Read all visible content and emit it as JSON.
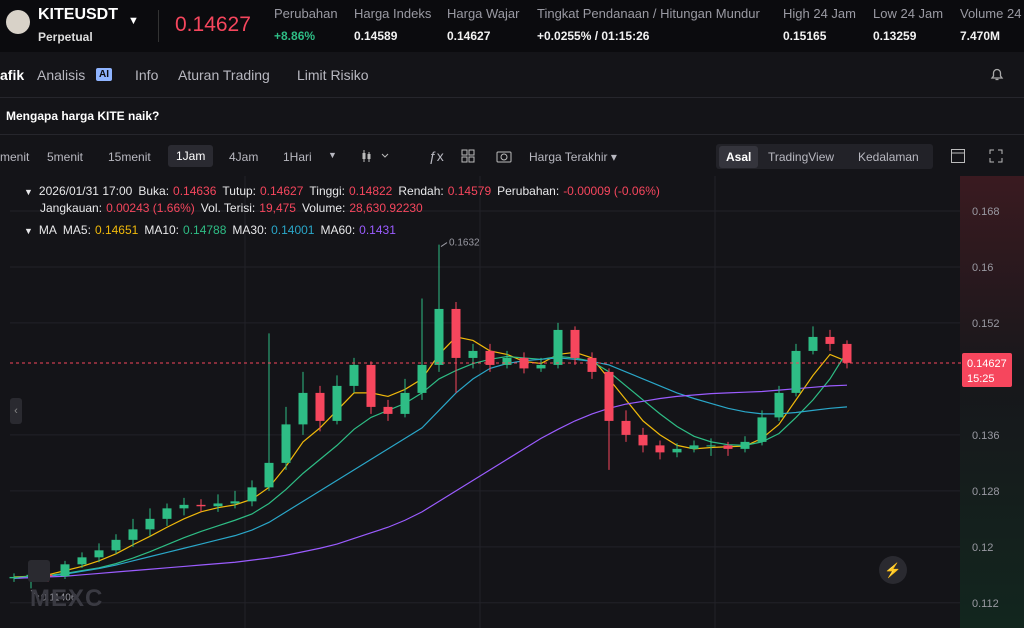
{
  "header": {
    "symbol": "KITEUSDT",
    "contract": "Perpetual",
    "price": "0.14627",
    "stats": [
      {
        "label": "Perubahan",
        "value": "+8.86%"
      },
      {
        "label": "Harga Indeks",
        "value": "0.14589"
      },
      {
        "label": "Harga Wajar",
        "value": "0.14627"
      },
      {
        "label": "Tingkat Pendanaan / Hitungan Mundur",
        "value": "+0.0255% / 01:15:26"
      },
      {
        "label": "High 24 Jam",
        "value": "0.15165"
      },
      {
        "label": "Low 24 Jam",
        "value": "0.13259"
      },
      {
        "label": "Volume 24",
        "value": "7.470M"
      }
    ]
  },
  "tabs": [
    "afik",
    "Analisis",
    "Info",
    "Aturan Trading",
    "Limit Risiko"
  ],
  "ai_badge": "AI",
  "banner": "Mengapa harga KITE naik?",
  "toolbar": {
    "intervals": [
      "menit",
      "5menit",
      "15menit",
      "1Jam",
      "4Jam",
      "1Hari"
    ],
    "price_type": "Harga Terakhir",
    "views": [
      "Asal",
      "TradingView",
      "Kedalaman"
    ]
  },
  "info": {
    "time": "2026/01/31 17:00",
    "line1": [
      {
        "label": "Buka:",
        "value": "0.14636"
      },
      {
        "label": "Tutup:",
        "value": "0.14627"
      },
      {
        "label": "Tinggi:",
        "value": "0.14822"
      },
      {
        "label": "Rendah:",
        "value": "0.14579"
      },
      {
        "label": "Perubahan:",
        "value": "-0.00009 (-0.06%)"
      }
    ],
    "line2": [
      {
        "label": "Jangkauan:",
        "value": "0.00243 (1.66%)"
      },
      {
        "label": "Vol. Terisi:",
        "value": "19,475"
      },
      {
        "label": "Volume:",
        "value": "28,630.92230"
      }
    ],
    "ma_title": "MA",
    "ma": [
      {
        "label": "MA5:",
        "value": "0.14651"
      },
      {
        "label": "MA10:",
        "value": "0.14788"
      },
      {
        "label": "MA30:",
        "value": "0.14001"
      },
      {
        "label": "MA60:",
        "value": "0.1431"
      }
    ]
  },
  "watermark": "MEXC",
  "chart_data": {
    "type": "candlestick",
    "up_color": "#2ebd85",
    "down_color": "#f6465d",
    "ylim": [
      0.1084,
      0.173
    ],
    "yticks": [
      0.112,
      0.12,
      0.128,
      0.136,
      0.152,
      0.16,
      0.168
    ],
    "grid": true,
    "last_price": 0.14627,
    "last_time": "15:25",
    "candles": [
      {
        "o": 0.1155,
        "h": 0.1162,
        "l": 0.115,
        "c": 0.1157
      },
      {
        "o": 0.1157,
        "h": 0.1166,
        "l": 0.11406,
        "c": 0.116
      },
      {
        "o": 0.116,
        "h": 0.1164,
        "l": 0.115,
        "c": 0.1158
      },
      {
        "o": 0.1158,
        "h": 0.118,
        "l": 0.1154,
        "c": 0.1175
      },
      {
        "o": 0.1175,
        "h": 0.1192,
        "l": 0.117,
        "c": 0.1185
      },
      {
        "o": 0.1185,
        "h": 0.1205,
        "l": 0.1178,
        "c": 0.1195
      },
      {
        "o": 0.1195,
        "h": 0.1218,
        "l": 0.119,
        "c": 0.121
      },
      {
        "o": 0.121,
        "h": 0.124,
        "l": 0.12,
        "c": 0.1225
      },
      {
        "o": 0.1225,
        "h": 0.1255,
        "l": 0.1215,
        "c": 0.124
      },
      {
        "o": 0.124,
        "h": 0.1262,
        "l": 0.123,
        "c": 0.1255
      },
      {
        "o": 0.1255,
        "h": 0.127,
        "l": 0.1245,
        "c": 0.126
      },
      {
        "o": 0.126,
        "h": 0.1268,
        "l": 0.125,
        "c": 0.1258
      },
      {
        "o": 0.1258,
        "h": 0.1275,
        "l": 0.125,
        "c": 0.1262
      },
      {
        "o": 0.1262,
        "h": 0.128,
        "l": 0.1255,
        "c": 0.1265
      },
      {
        "o": 0.1265,
        "h": 0.1295,
        "l": 0.1258,
        "c": 0.1285
      },
      {
        "o": 0.1285,
        "h": 0.1505,
        "l": 0.128,
        "c": 0.132
      },
      {
        "o": 0.132,
        "h": 0.14,
        "l": 0.131,
        "c": 0.1375
      },
      {
        "o": 0.1375,
        "h": 0.145,
        "l": 0.136,
        "c": 0.142
      },
      {
        "o": 0.142,
        "h": 0.143,
        "l": 0.1365,
        "c": 0.138
      },
      {
        "o": 0.138,
        "h": 0.1445,
        "l": 0.1375,
        "c": 0.143
      },
      {
        "o": 0.143,
        "h": 0.147,
        "l": 0.142,
        "c": 0.146
      },
      {
        "o": 0.146,
        "h": 0.1465,
        "l": 0.139,
        "c": 0.14
      },
      {
        "o": 0.14,
        "h": 0.141,
        "l": 0.138,
        "c": 0.139
      },
      {
        "o": 0.139,
        "h": 0.144,
        "l": 0.1385,
        "c": 0.142
      },
      {
        "o": 0.142,
        "h": 0.1555,
        "l": 0.141,
        "c": 0.146
      },
      {
        "o": 0.146,
        "h": 0.1632,
        "l": 0.145,
        "c": 0.154
      },
      {
        "o": 0.154,
        "h": 0.155,
        "l": 0.142,
        "c": 0.147
      },
      {
        "o": 0.147,
        "h": 0.149,
        "l": 0.1455,
        "c": 0.148
      },
      {
        "o": 0.148,
        "h": 0.149,
        "l": 0.145,
        "c": 0.146
      },
      {
        "o": 0.146,
        "h": 0.148,
        "l": 0.1455,
        "c": 0.147
      },
      {
        "o": 0.147,
        "h": 0.1478,
        "l": 0.1448,
        "c": 0.1455
      },
      {
        "o": 0.1455,
        "h": 0.147,
        "l": 0.145,
        "c": 0.146
      },
      {
        "o": 0.146,
        "h": 0.152,
        "l": 0.1455,
        "c": 0.151
      },
      {
        "o": 0.151,
        "h": 0.1515,
        "l": 0.146,
        "c": 0.147
      },
      {
        "o": 0.147,
        "h": 0.1478,
        "l": 0.144,
        "c": 0.145
      },
      {
        "o": 0.145,
        "h": 0.1455,
        "l": 0.131,
        "c": 0.138
      },
      {
        "o": 0.138,
        "h": 0.1395,
        "l": 0.135,
        "c": 0.136
      },
      {
        "o": 0.136,
        "h": 0.137,
        "l": 0.1335,
        "c": 0.1345
      },
      {
        "o": 0.1345,
        "h": 0.1352,
        "l": 0.1325,
        "c": 0.1335
      },
      {
        "o": 0.1335,
        "h": 0.1348,
        "l": 0.1328,
        "c": 0.134
      },
      {
        "o": 0.134,
        "h": 0.1352,
        "l": 0.1335,
        "c": 0.1345
      },
      {
        "o": 0.1345,
        "h": 0.1355,
        "l": 0.133,
        "c": 0.1345
      },
      {
        "o": 0.1345,
        "h": 0.135,
        "l": 0.133,
        "c": 0.134
      },
      {
        "o": 0.134,
        "h": 0.1358,
        "l": 0.1335,
        "c": 0.135
      },
      {
        "o": 0.135,
        "h": 0.1395,
        "l": 0.1345,
        "c": 0.1385
      },
      {
        "o": 0.1385,
        "h": 0.143,
        "l": 0.138,
        "c": 0.142
      },
      {
        "o": 0.142,
        "h": 0.149,
        "l": 0.1415,
        "c": 0.148
      },
      {
        "o": 0.148,
        "h": 0.1515,
        "l": 0.1475,
        "c": 0.15
      },
      {
        "o": 0.15,
        "h": 0.151,
        "l": 0.148,
        "c": 0.149
      },
      {
        "o": 0.149,
        "h": 0.1495,
        "l": 0.1455,
        "c": 0.1463
      }
    ],
    "series": [
      {
        "name": "MA5",
        "color": "#f0b90b",
        "values": [
          0.1157,
          0.1158,
          0.116,
          0.1166,
          0.1172,
          0.118,
          0.119,
          0.1203,
          0.1215,
          0.1228,
          0.124,
          0.125,
          0.1256,
          0.126,
          0.1268,
          0.1285,
          0.1315,
          0.135,
          0.137,
          0.1395,
          0.142,
          0.142,
          0.1415,
          0.1425,
          0.144,
          0.1475,
          0.15,
          0.1495,
          0.148,
          0.1475,
          0.1465,
          0.1462,
          0.1475,
          0.1478,
          0.147,
          0.144,
          0.141,
          0.138,
          0.136,
          0.1345,
          0.134,
          0.1342,
          0.1343,
          0.1344,
          0.1355,
          0.1375,
          0.141,
          0.1445,
          0.1475,
          0.1465
        ]
      },
      {
        "name": "MA10",
        "color": "#2ebd85",
        "values": [
          0.1156,
          0.1158,
          0.1159,
          0.1162,
          0.1166,
          0.117,
          0.1176,
          0.1184,
          0.1193,
          0.1203,
          0.1213,
          0.1222,
          0.123,
          0.1238,
          0.1247,
          0.1262,
          0.1282,
          0.1305,
          0.1325,
          0.1345,
          0.1368,
          0.1385,
          0.1395,
          0.1405,
          0.142,
          0.144,
          0.1452,
          0.1462,
          0.1468,
          0.1472,
          0.147,
          0.1468,
          0.1472,
          0.147,
          0.1465,
          0.145,
          0.143,
          0.141,
          0.139,
          0.1372,
          0.1358,
          0.135,
          0.1346,
          0.1345,
          0.135,
          0.1362,
          0.1385,
          0.141,
          0.144,
          0.1479
        ]
      },
      {
        "name": "MA30",
        "color": "#2aa7c9",
        "values": [
          0.1155,
          0.1156,
          0.1158,
          0.1161,
          0.1165,
          0.1169,
          0.1174,
          0.118,
          0.1186,
          0.1192,
          0.1198,
          0.1204,
          0.121,
          0.1216,
          0.1224,
          0.1235,
          0.125,
          0.1265,
          0.128,
          0.1295,
          0.131,
          0.1325,
          0.134,
          0.1355,
          0.137,
          0.1395,
          0.142,
          0.144,
          0.1455,
          0.1462,
          0.1466,
          0.1468,
          0.147,
          0.1468,
          0.1465,
          0.146,
          0.145,
          0.144,
          0.143,
          0.142,
          0.1412,
          0.1405,
          0.1398,
          0.1393,
          0.139,
          0.139,
          0.1392,
          0.1395,
          0.1398,
          0.14
        ]
      },
      {
        "name": "MA60",
        "color": "#9b5cff",
        "values": [
          0.1155,
          0.1156,
          0.1157,
          0.1158,
          0.116,
          0.1162,
          0.1164,
          0.1166,
          0.1168,
          0.117,
          0.1172,
          0.1174,
          0.1176,
          0.1178,
          0.1181,
          0.1184,
          0.1188,
          0.1193,
          0.1198,
          0.1204,
          0.1212,
          0.122,
          0.1228,
          0.1238,
          0.125,
          0.1265,
          0.128,
          0.1295,
          0.131,
          0.1325,
          0.134,
          0.1355,
          0.1368,
          0.138,
          0.139,
          0.1398,
          0.1404,
          0.1408,
          0.1412,
          0.1415,
          0.1417,
          0.1419,
          0.142,
          0.1421,
          0.1422,
          0.1424,
          0.1426,
          0.1428,
          0.143,
          0.1431
        ]
      }
    ]
  }
}
